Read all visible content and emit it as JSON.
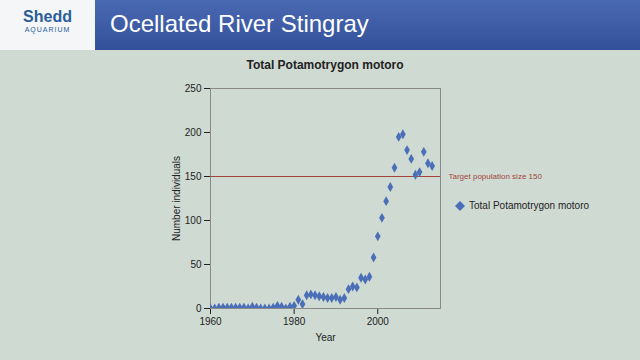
{
  "header": {
    "logo": "Shedd",
    "logo_sub": "AQUARIUM",
    "title": "Ocellated River Stingray"
  },
  "chart_data": {
    "type": "scatter",
    "title": "Total Potamotrygon motoro",
    "x_label": "Year",
    "y_label": "Number individuals",
    "x": [
      1960,
      1961,
      1962,
      1963,
      1964,
      1965,
      1966,
      1967,
      1968,
      1969,
      1970,
      1971,
      1972,
      1973,
      1974,
      1975,
      1976,
      1977,
      1978,
      1979,
      1980,
      1981,
      1982,
      1983,
      1984,
      1985,
      1986,
      1987,
      1988,
      1989,
      1990,
      1991,
      1992,
      1993,
      1994,
      1995,
      1996,
      1997,
      1998,
      1999,
      2000,
      2001,
      2002,
      2003,
      2004,
      2005,
      2006,
      2007,
      2008,
      2009,
      2010,
      2011,
      2012,
      2013
    ],
    "series": [
      {
        "name": "Total Potamotrygon motoro",
        "color": "#4a6fb8",
        "marker": "diamond",
        "values": [
          0,
          0,
          1,
          1,
          1,
          1,
          1,
          1,
          1,
          0,
          2,
          1,
          0,
          0,
          0,
          1,
          3,
          2,
          0,
          2,
          3,
          10,
          5,
          15,
          16,
          15,
          14,
          13,
          12,
          12,
          13,
          10,
          12,
          22,
          25,
          24,
          35,
          33,
          36,
          58,
          82,
          103,
          122,
          138,
          160,
          195,
          198,
          180,
          170,
          152,
          155,
          178,
          165,
          162
        ]
      }
    ],
    "reference_lines": [
      {
        "value": 150,
        "label": "Target population size 150",
        "color": "#a3453c"
      }
    ],
    "xlim": [
      1960,
      2015
    ],
    "xticks": [
      1960,
      1980,
      2000
    ],
    "ylim": [
      0,
      250
    ],
    "yticks": [
      0,
      50,
      100,
      150,
      200,
      250
    ],
    "grid": false,
    "legend": "right"
  }
}
